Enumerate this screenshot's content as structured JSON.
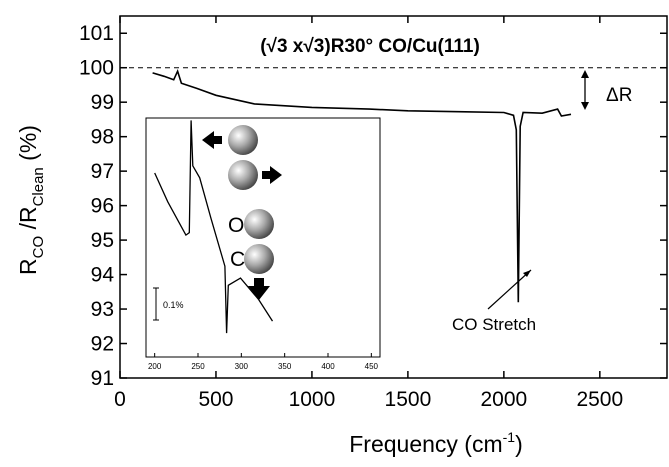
{
  "chart_data": {
    "type": "line",
    "title": "(√3 x√3)R30° CO/Cu(111)",
    "x_label_parts": [
      "Frequency (cm",
      "-1",
      ")"
    ],
    "y_label_parts": [
      "R",
      "CO",
      " /R",
      "Clean",
      " (%)"
    ],
    "xlim": [
      0,
      2850
    ],
    "ylim": [
      91,
      101.5
    ],
    "xticks": [
      0,
      500,
      1000,
      1500,
      2000,
      2500
    ],
    "yticks": [
      91,
      92,
      93,
      94,
      95,
      96,
      97,
      98,
      99,
      100,
      101
    ],
    "reference_line": 100,
    "annotations": [
      "ΔR",
      "CO Stretch",
      "O",
      "C",
      "0.1%"
    ],
    "series": [
      {
        "color": "#000000",
        "x": [
          170,
          230,
          280,
          300,
          320,
          400,
          500,
          700,
          1000,
          1300,
          1500,
          1800,
          2000,
          2050,
          2065,
          2075,
          2085,
          2100,
          2200,
          2280,
          2300,
          2350
        ],
        "values": [
          99.85,
          99.75,
          99.65,
          99.9,
          99.55,
          99.4,
          99.2,
          98.95,
          98.85,
          98.8,
          98.75,
          98.72,
          98.7,
          98.62,
          98.2,
          93.2,
          98.3,
          98.7,
          98.68,
          98.8,
          98.6,
          98.65
        ]
      }
    ],
    "inset": {
      "type": "line",
      "xlim": [
        190,
        460
      ],
      "ylim": [
        0,
        100
      ],
      "xticks": [
        200,
        250,
        300,
        350,
        400,
        450
      ],
      "x": [
        200,
        215,
        236,
        240,
        242,
        244,
        252,
        265,
        281,
        283,
        285,
        299,
        320,
        336
      ],
      "values": [
        77,
        65,
        51,
        52,
        99,
        80,
        75,
        58,
        38,
        10,
        30,
        33,
        24,
        15
      ],
      "color": "#000000"
    }
  }
}
